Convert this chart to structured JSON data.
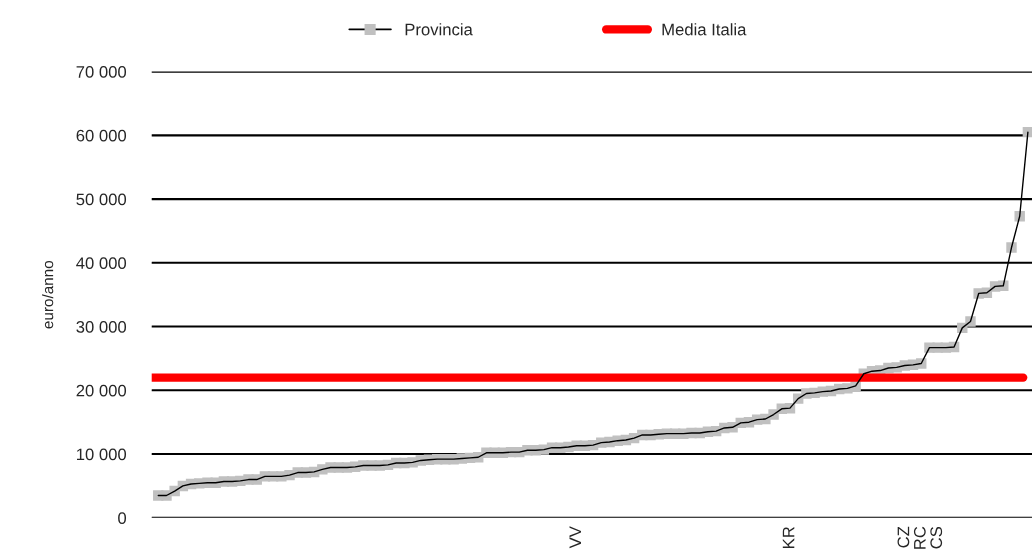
{
  "chart_data": {
    "type": "line",
    "ylabel": "euro/anno",
    "categories": [
      null,
      null,
      null,
      null,
      null,
      null,
      null,
      null,
      null,
      null,
      null,
      null,
      null,
      null,
      null,
      null,
      null,
      null,
      null,
      null,
      null,
      null,
      null,
      null,
      null,
      null,
      null,
      null,
      null,
      null,
      null,
      null,
      null,
      null,
      null,
      null,
      null,
      null,
      null,
      null,
      null,
      null,
      null,
      null,
      null,
      null,
      null,
      null,
      null,
      null,
      null,
      "VV",
      null,
      null,
      null,
      null,
      null,
      null,
      null,
      null,
      null,
      null,
      null,
      null,
      null,
      null,
      null,
      null,
      null,
      null,
      null,
      null,
      null,
      null,
      null,
      null,
      null,
      "KR",
      null,
      null,
      null,
      null,
      null,
      null,
      null,
      null,
      null,
      null,
      null,
      null,
      null,
      "CZ",
      null,
      "RC",
      null,
      "CS",
      null,
      null,
      null,
      null,
      null,
      null,
      null,
      null,
      null,
      null,
      null
    ],
    "series": [
      {
        "name": "Provincia",
        "color": "#c0c0c0",
        "values": [
          3500,
          3500,
          4200,
          5000,
          5300,
          5400,
          5500,
          5500,
          5700,
          5700,
          5800,
          6000,
          6000,
          6500,
          6500,
          6500,
          6700,
          7100,
          7100,
          7200,
          7600,
          7900,
          7900,
          7900,
          8000,
          8200,
          8200,
          8200,
          8300,
          8600,
          8600,
          8700,
          9000,
          9100,
          9200,
          9200,
          9200,
          9300,
          9400,
          9500,
          10200,
          10200,
          10200,
          10300,
          10300,
          10600,
          10600,
          10700,
          11000,
          11000,
          11100,
          11300,
          11300,
          11400,
          11800,
          11900,
          12100,
          12200,
          12500,
          13000,
          13000,
          13100,
          13200,
          13200,
          13200,
          13300,
          13300,
          13500,
          13600,
          14100,
          14200,
          14900,
          15000,
          15400,
          15500,
          16200,
          17100,
          17200,
          18700,
          19500,
          19600,
          19800,
          19900,
          20200,
          20300,
          20700,
          22600,
          23000,
          23100,
          23500,
          23600,
          23900,
          24000,
          24200,
          26700,
          26700,
          26700,
          26800,
          29800,
          30800,
          35200,
          35300,
          36300,
          36400,
          42400,
          47300,
          60500
        ]
      }
    ],
    "ref_lines": [
      {
        "axis": "y",
        "value": 22000,
        "label": "Media Italia",
        "color": "#ff0000"
      }
    ],
    "ylim": [
      0,
      70000
    ],
    "yticks": [
      0,
      {
        "value": 10000,
        "label": "10 000"
      },
      {
        "value": 20000,
        "label": "20 000"
      },
      {
        "value": 30000,
        "label": "30 000"
      },
      {
        "value": 40000,
        "label": "40 000"
      },
      {
        "value": 50000,
        "label": "50 000"
      },
      {
        "value": 60000,
        "label": "60 000"
      },
      {
        "value": 70000,
        "label": "70 000"
      }
    ],
    "grid": "y",
    "legend": "top",
    "marker": "square",
    "line_style": "solid"
  }
}
